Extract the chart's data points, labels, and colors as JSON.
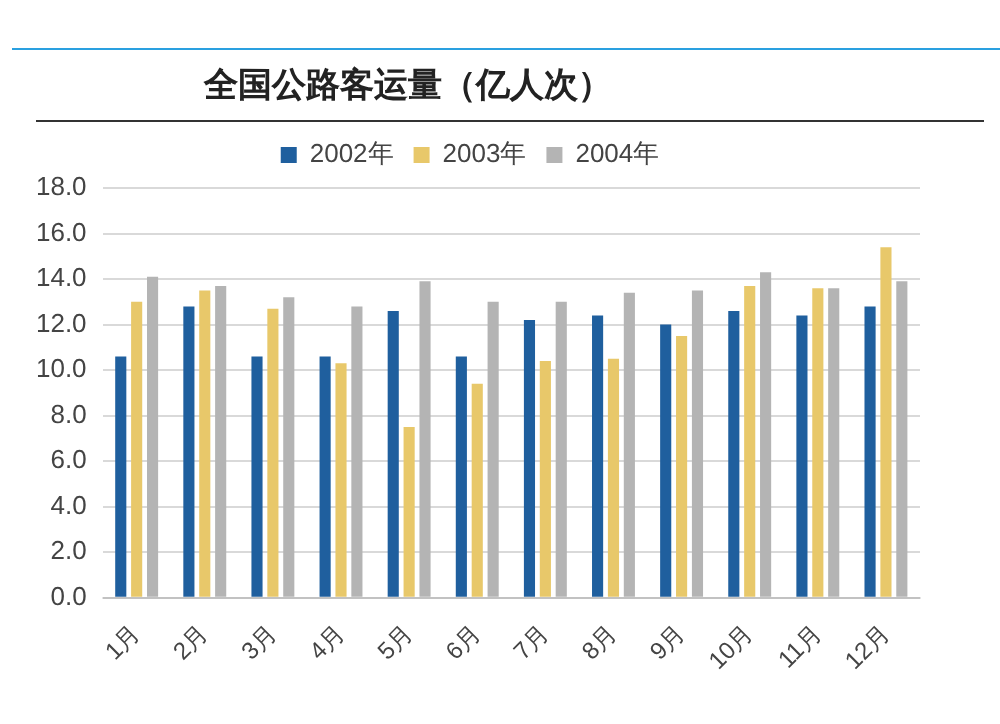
{
  "chart_data": {
    "type": "bar",
    "title": "全国公路客运量（亿人次）",
    "categories": [
      "1月",
      "2月",
      "3月",
      "4月",
      "5月",
      "6月",
      "7月",
      "8月",
      "9月",
      "10月",
      "11月",
      "12月"
    ],
    "series": [
      {
        "name": "2002年",
        "color": "#1f5f9e",
        "values": [
          10.6,
          12.8,
          10.6,
          10.6,
          12.6,
          10.6,
          12.2,
          12.4,
          12.0,
          12.6,
          12.4,
          12.8
        ]
      },
      {
        "name": "2003年",
        "color": "#e8c86a",
        "values": [
          13.0,
          13.5,
          12.7,
          10.3,
          7.5,
          9.4,
          10.4,
          10.5,
          11.5,
          13.7,
          13.6,
          15.4
        ]
      },
      {
        "name": "2004年",
        "color": "#b4b4b4",
        "values": [
          14.1,
          13.7,
          13.2,
          12.8,
          13.9,
          13.0,
          13.0,
          13.4,
          13.5,
          14.3,
          13.6,
          13.9
        ]
      }
    ],
    "ylim": [
      0,
      18
    ],
    "yticks": [
      {
        "value": 0,
        "label": "0.0"
      },
      {
        "value": 2,
        "label": "2.0"
      },
      {
        "value": 4,
        "label": "4.0"
      },
      {
        "value": 6,
        "label": "6.0"
      },
      {
        "value": 8,
        "label": "8.0"
      },
      {
        "value": 10,
        "label": "10.0"
      },
      {
        "value": 12,
        "label": "12.0"
      },
      {
        "value": 14,
        "label": "14.0"
      },
      {
        "value": 16,
        "label": "16.0"
      },
      {
        "value": 18,
        "label": "18.0"
      }
    ],
    "grid": "y",
    "legend": "top"
  }
}
